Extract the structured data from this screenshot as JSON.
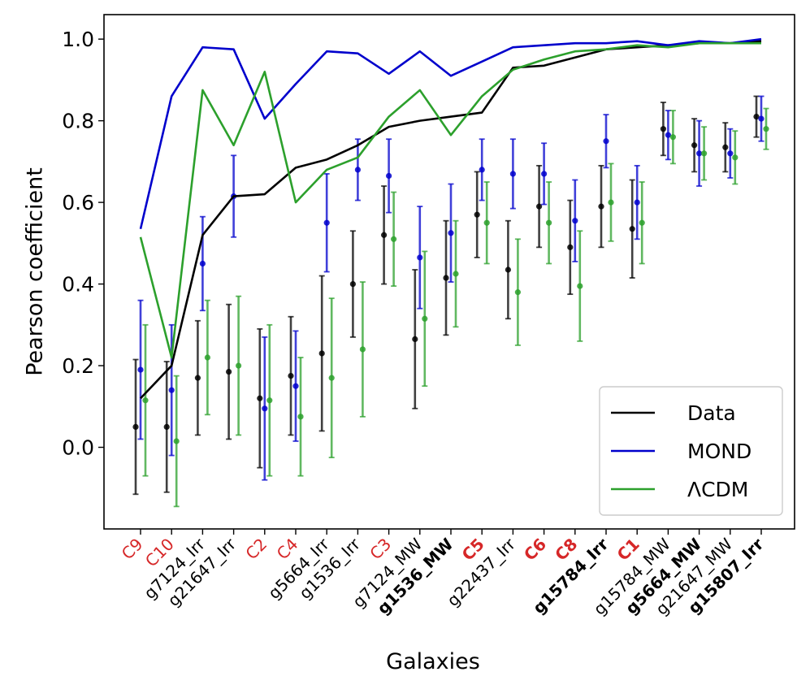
{
  "chart_data": {
    "type": "line+errorbar",
    "title": "",
    "xlabel": "Galaxies",
    "ylabel": "Pearson coefficient",
    "ylim": [
      -0.2,
      1.06
    ],
    "yticks": [
      "0.0",
      "0.2",
      "0.4",
      "0.6",
      "0.8",
      "1.0"
    ],
    "ytick_values": [
      0.0,
      0.2,
      0.4,
      0.6,
      0.8,
      1.0
    ],
    "categories": [
      {
        "label": "C9",
        "color": "#d62728",
        "bold": false
      },
      {
        "label": "C10",
        "color": "#d62728",
        "bold": false
      },
      {
        "label": "g7124_Irr",
        "color": "#000000",
        "bold": false
      },
      {
        "label": "g21647_Irr",
        "color": "#000000",
        "bold": false
      },
      {
        "label": "C2",
        "color": "#d62728",
        "bold": false
      },
      {
        "label": "C4",
        "color": "#d62728",
        "bold": false
      },
      {
        "label": "g5664_Irr",
        "color": "#000000",
        "bold": false
      },
      {
        "label": "g1536_Irr",
        "color": "#000000",
        "bold": false
      },
      {
        "label": "C3",
        "color": "#d62728",
        "bold": false
      },
      {
        "label": "g7124_MW",
        "color": "#000000",
        "bold": false
      },
      {
        "label": "g1536_MW",
        "color": "#000000",
        "bold": true
      },
      {
        "label": "C5",
        "color": "#d62728",
        "bold": true
      },
      {
        "label": "g22437_Irr",
        "color": "#000000",
        "bold": false
      },
      {
        "label": "C6",
        "color": "#d62728",
        "bold": true
      },
      {
        "label": "C8",
        "color": "#d62728",
        "bold": true
      },
      {
        "label": "g15784_Irr",
        "color": "#000000",
        "bold": true
      },
      {
        "label": "C1",
        "color": "#d62728",
        "bold": true
      },
      {
        "label": "g15784_MW",
        "color": "#000000",
        "bold": false
      },
      {
        "label": "g5664_MW",
        "color": "#000000",
        "bold": true
      },
      {
        "label": "g21647_MW",
        "color": "#000000",
        "bold": false
      },
      {
        "label": "g15807_Irr",
        "color": "#000000",
        "bold": true
      }
    ],
    "series": [
      {
        "name": "Data",
        "color": "#000000",
        "line": [
          0.12,
          0.2,
          0.52,
          0.615,
          0.62,
          0.685,
          0.705,
          0.74,
          0.785,
          0.8,
          0.81,
          0.82,
          0.93,
          0.935,
          0.955,
          0.975,
          0.98,
          0.985,
          0.99,
          0.99,
          0.995
        ],
        "points": [
          0.05,
          0.05,
          0.17,
          0.185,
          0.12,
          0.175,
          0.23,
          0.4,
          0.52,
          0.265,
          0.415,
          0.57,
          0.435,
          0.59,
          0.49,
          0.59,
          0.535,
          0.78,
          0.74,
          0.735,
          0.81
        ],
        "errors": [
          0.165,
          0.16,
          0.14,
          0.165,
          0.17,
          0.145,
          0.19,
          0.13,
          0.12,
          0.17,
          0.14,
          0.105,
          0.12,
          0.1,
          0.115,
          0.1,
          0.12,
          0.065,
          0.065,
          0.06,
          0.05
        ]
      },
      {
        "name": "MOND",
        "color": "#0000cc",
        "line": [
          0.535,
          0.86,
          0.98,
          0.975,
          0.805,
          0.89,
          0.97,
          0.965,
          0.915,
          0.97,
          0.91,
          0.945,
          0.98,
          0.985,
          0.99,
          0.99,
          0.995,
          0.985,
          0.995,
          0.99,
          1.0
        ],
        "points": [
          0.19,
          0.14,
          0.45,
          0.615,
          0.095,
          0.15,
          0.55,
          0.68,
          0.665,
          0.465,
          0.525,
          0.68,
          0.67,
          0.67,
          0.555,
          0.75,
          0.6,
          0.765,
          0.72,
          0.72,
          0.805
        ],
        "errors": [
          0.17,
          0.16,
          0.115,
          0.1,
          0.175,
          0.135,
          0.12,
          0.075,
          0.09,
          0.125,
          0.12,
          0.075,
          0.085,
          0.075,
          0.1,
          0.065,
          0.09,
          0.06,
          0.08,
          0.06,
          0.055
        ]
      },
      {
        "name": "ΛCDM",
        "color": "#2ca02c",
        "line": [
          0.515,
          0.22,
          0.875,
          0.74,
          0.92,
          0.6,
          0.68,
          0.71,
          0.81,
          0.875,
          0.765,
          0.86,
          0.925,
          0.95,
          0.97,
          0.975,
          0.985,
          0.98,
          0.99,
          0.99,
          0.99
        ],
        "points": [
          0.115,
          0.015,
          0.22,
          0.2,
          0.115,
          0.075,
          0.17,
          0.24,
          0.51,
          0.315,
          0.425,
          0.55,
          0.38,
          0.55,
          0.395,
          0.6,
          0.55,
          0.76,
          0.72,
          0.71,
          0.78
        ],
        "errors": [
          0.185,
          0.16,
          0.14,
          0.17,
          0.185,
          0.145,
          0.195,
          0.165,
          0.115,
          0.165,
          0.13,
          0.1,
          0.13,
          0.1,
          0.135,
          0.095,
          0.1,
          0.065,
          0.065,
          0.065,
          0.05
        ]
      }
    ],
    "legend": {
      "placement": "lower-right",
      "entries": [
        "Data",
        "MOND",
        "ΛCDM"
      ]
    }
  }
}
